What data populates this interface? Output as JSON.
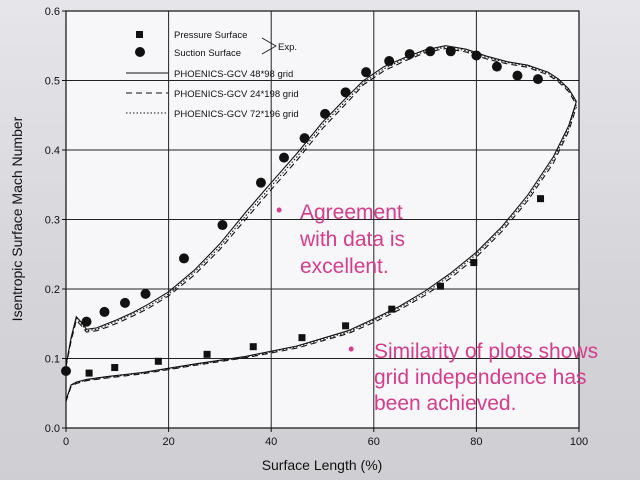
{
  "chart_data": {
    "type": "line",
    "xlabel": "Surface Length (%)",
    "ylabel": "Isentropic Surface Mach Number",
    "xlim": [
      0,
      100
    ],
    "ylim": [
      0,
      0.6
    ],
    "x_ticks": [
      "0",
      "20",
      "40",
      "60",
      "80",
      "100"
    ],
    "y_ticks": [
      "0.0",
      "0.1",
      "0.2",
      "0.3",
      "0.4",
      "0.5",
      "0.6"
    ],
    "grid": true,
    "legend_position": "top-left",
    "legend": {
      "markers": [
        "Pressure Surface",
        "Suction Surface"
      ],
      "exp_label": "Exp.",
      "lines": [
        "PHOENICS-GCV 48*98 grid",
        "PHOENICS-GCV 24*198 grid",
        "PHOENICS-GCV 72*196 grid"
      ]
    },
    "series": [
      {
        "name": "Pressure Surface",
        "style": "square",
        "x": [
          0,
          4.5,
          9.5,
          18,
          27.5,
          36.5,
          46,
          54.5,
          63.5,
          73,
          79.5,
          92.5
        ],
        "y": [
          0.082,
          0.079,
          0.087,
          0.096,
          0.106,
          0.117,
          0.13,
          0.147,
          0.171,
          0.204,
          0.238,
          0.33
        ]
      },
      {
        "name": "Suction Surface",
        "style": "circle",
        "x": [
          0,
          4,
          7.5,
          11.5,
          15.5,
          23,
          30.5,
          38,
          42.5,
          46.5,
          50.5,
          54.5,
          58.5,
          63,
          67,
          71,
          75,
          80,
          84,
          88,
          92
        ],
        "y": [
          0.082,
          0.153,
          0.167,
          0.18,
          0.193,
          0.244,
          0.292,
          0.353,
          0.389,
          0.417,
          0.452,
          0.483,
          0.512,
          0.528,
          0.538,
          0.542,
          0.542,
          0.536,
          0.52,
          0.507,
          0.502
        ]
      },
      {
        "name": "PHOENICS-GCV 48*98 grid",
        "style": "solid",
        "suction": {
          "x": [
            0,
            1,
            2,
            3,
            4,
            6,
            8,
            10,
            13,
            16,
            20,
            25,
            30,
            35,
            40,
            45,
            50,
            55,
            58,
            62,
            66,
            70,
            74,
            78,
            82,
            86,
            90,
            94,
            96,
            98,
            99.5
          ],
          "y": [
            0.09,
            0.13,
            0.16,
            0.152,
            0.142,
            0.144,
            0.15,
            0.156,
            0.166,
            0.178,
            0.196,
            0.227,
            0.265,
            0.31,
            0.353,
            0.395,
            0.44,
            0.478,
            0.5,
            0.52,
            0.533,
            0.544,
            0.55,
            0.545,
            0.535,
            0.527,
            0.522,
            0.512,
            0.502,
            0.488,
            0.47
          ]
        },
        "pressure": {
          "x": [
            0,
            1,
            2,
            4,
            8,
            15,
            25,
            35,
            45,
            55,
            60,
            65,
            70,
            75,
            80,
            85,
            90,
            95,
            98,
            99.5
          ],
          "y": [
            0.04,
            0.062,
            0.066,
            0.07,
            0.074,
            0.08,
            0.092,
            0.103,
            0.118,
            0.14,
            0.157,
            0.175,
            0.197,
            0.223,
            0.253,
            0.29,
            0.335,
            0.39,
            0.435,
            0.47
          ]
        }
      },
      {
        "name": "PHOENICS-GCV 24*198 grid",
        "style": "dashed",
        "suction": {
          "x": [
            0,
            1,
            2,
            3,
            4,
            6,
            8,
            10,
            13,
            16,
            20,
            25,
            30,
            35,
            40,
            45,
            50,
            55,
            58,
            62,
            66,
            70,
            74,
            78,
            82,
            86,
            90,
            94,
            96,
            98,
            99.5
          ],
          "y": [
            0.088,
            0.125,
            0.155,
            0.147,
            0.138,
            0.14,
            0.145,
            0.151,
            0.161,
            0.172,
            0.19,
            0.22,
            0.257,
            0.3,
            0.343,
            0.385,
            0.431,
            0.47,
            0.494,
            0.514,
            0.528,
            0.54,
            0.546,
            0.541,
            0.531,
            0.524,
            0.519,
            0.508,
            0.498,
            0.484,
            0.465
          ]
        },
        "pressure": {
          "x": [
            0,
            1,
            2,
            4,
            8,
            15,
            25,
            35,
            45,
            55,
            60,
            65,
            70,
            75,
            80,
            85,
            90,
            95,
            98,
            99.5
          ],
          "y": [
            0.038,
            0.06,
            0.064,
            0.068,
            0.072,
            0.078,
            0.09,
            0.101,
            0.115,
            0.136,
            0.152,
            0.17,
            0.191,
            0.216,
            0.246,
            0.283,
            0.327,
            0.381,
            0.427,
            0.462
          ]
        }
      },
      {
        "name": "PHOENICS-GCV 72*196 grid",
        "style": "dotted",
        "suction": {
          "x": [
            0,
            1,
            2,
            3,
            4,
            6,
            8,
            10,
            13,
            16,
            20,
            25,
            30,
            35,
            40,
            45,
            50,
            55,
            58,
            62,
            66,
            70,
            74,
            78,
            82,
            86,
            90,
            94,
            96,
            98,
            99.5
          ],
          "y": [
            0.089,
            0.128,
            0.158,
            0.15,
            0.14,
            0.142,
            0.148,
            0.154,
            0.164,
            0.175,
            0.193,
            0.224,
            0.261,
            0.305,
            0.348,
            0.39,
            0.436,
            0.474,
            0.497,
            0.517,
            0.531,
            0.542,
            0.548,
            0.543,
            0.533,
            0.526,
            0.521,
            0.51,
            0.5,
            0.486,
            0.468
          ]
        },
        "pressure": {
          "x": [
            0,
            1,
            2,
            4,
            8,
            15,
            25,
            35,
            45,
            55,
            60,
            65,
            70,
            75,
            80,
            85,
            90,
            95,
            98,
            99.5
          ],
          "y": [
            0.039,
            0.061,
            0.065,
            0.069,
            0.073,
            0.079,
            0.091,
            0.102,
            0.117,
            0.138,
            0.155,
            0.173,
            0.194,
            0.22,
            0.25,
            0.287,
            0.331,
            0.386,
            0.431,
            0.466
          ]
        }
      }
    ]
  },
  "annotations": {
    "bullet": "•",
    "note1_lines": [
      "Agreement",
      "with data is",
      "excellent."
    ],
    "note2_lines": [
      "Similarity of plots shows",
      "grid independence has",
      "been achieved."
    ]
  },
  "colors": {
    "annotation": "#d63c8c",
    "ink": "#111111",
    "plot_background": "#f7f7f9"
  }
}
